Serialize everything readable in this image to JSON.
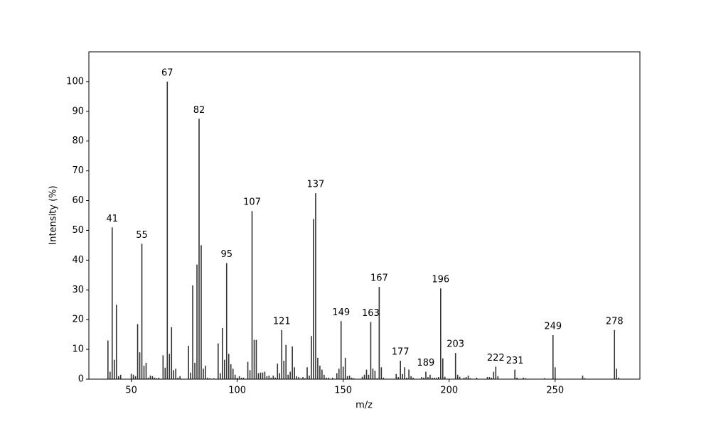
{
  "chart_data": {
    "type": "bar",
    "x_label": "m/z",
    "y_label": "Intensity (%)",
    "x": [
      39,
      40,
      41,
      42,
      43,
      44,
      45,
      50,
      51,
      52,
      53,
      54,
      55,
      56,
      57,
      58,
      59,
      60,
      61,
      62,
      63,
      65,
      66,
      67,
      68,
      69,
      70,
      71,
      72,
      73,
      77,
      78,
      79,
      80,
      81,
      82,
      83,
      84,
      85,
      86,
      87,
      89,
      91,
      92,
      93,
      94,
      95,
      96,
      97,
      98,
      99,
      100,
      101,
      102,
      103,
      105,
      106,
      107,
      108,
      109,
      110,
      111,
      112,
      113,
      114,
      115,
      116,
      117,
      118,
      119,
      120,
      121,
      122,
      123,
      124,
      125,
      126,
      127,
      128,
      129,
      130,
      131,
      132,
      133,
      134,
      135,
      136,
      137,
      138,
      139,
      140,
      141,
      142,
      143,
      145,
      147,
      148,
      149,
      150,
      151,
      152,
      153,
      154,
      155,
      159,
      160,
      161,
      162,
      163,
      164,
      165,
      166,
      167,
      168,
      169,
      175,
      176,
      177,
      178,
      179,
      180,
      181,
      182,
      183,
      187,
      188,
      189,
      190,
      191,
      192,
      193,
      194,
      195,
      196,
      197,
      198,
      203,
      204,
      205,
      207,
      208,
      209,
      210,
      213,
      218,
      219,
      220,
      221,
      222,
      223,
      231,
      232,
      235,
      236,
      245,
      249,
      250,
      263,
      264,
      278,
      279,
      280
    ],
    "values": [
      13,
      2.5,
      51,
      6.5,
      25,
      1,
      1.5,
      1.8,
      1.5,
      1,
      18.5,
      9,
      45.5,
      4.5,
      5.5,
      0.5,
      1.2,
      1,
      0.5,
      0.3,
      0.5,
      8,
      3.8,
      100,
      8.5,
      17.5,
      3,
      3.5,
      0.5,
      1,
      11.2,
      2.2,
      31.5,
      5.5,
      38.5,
      87.5,
      45,
      3.5,
      4.5,
      0.5,
      0.3,
      0.3,
      12,
      2,
      17.2,
      6.5,
      39,
      8.5,
      5,
      3.5,
      1.5,
      0.5,
      1,
      0.5,
      0.5,
      5.8,
      3,
      56.5,
      13.2,
      13.2,
      2,
      2.2,
      2.2,
      2.5,
      1,
      1.2,
      0.5,
      1.2,
      0.5,
      5.2,
      2,
      16.5,
      6.2,
      11.5,
      1.5,
      2.5,
      11,
      4,
      1,
      0.7,
      0.3,
      0.7,
      0.3,
      4,
      1.2,
      14.5,
      53.8,
      62.5,
      7.2,
      4.5,
      3.2,
      1.5,
      0.5,
      0.5,
      0.5,
      2,
      3.5,
      19.5,
      4.2,
      7.2,
      1,
      1.2,
      0.5,
      0.3,
      0.8,
      1.5,
      3.2,
      1.5,
      19.2,
      3.5,
      2.8,
      0.3,
      31,
      4,
      0.5,
      1.7,
      0.7,
      6.2,
      1.7,
      4,
      0.5,
      3.2,
      1,
      0.5,
      0.7,
      0.5,
      2.5,
      0.7,
      1.5,
      0.5,
      0.5,
      0.5,
      0.7,
      30.5,
      7,
      0.8,
      8.8,
      1.5,
      0.8,
      0.5,
      0.7,
      1.2,
      0.3,
      0.5,
      0.7,
      0.7,
      0.5,
      2.5,
      4.2,
      1,
      3.2,
      0.5,
      0.5,
      0.3,
      0.3,
      14.8,
      4,
      1.2,
      0.3,
      16.5,
      3.5,
      0.5
    ],
    "color": "#333333",
    "annotated_peaks": [
      41,
      55,
      67,
      82,
      95,
      107,
      121,
      137,
      149,
      163,
      167,
      177,
      189,
      196,
      203,
      222,
      231,
      249,
      278
    ],
    "xlim": [
      30,
      290
    ],
    "ylim": [
      0,
      110
    ],
    "xticks": [
      50,
      100,
      150,
      200,
      250
    ],
    "yticks": [
      0,
      10,
      20,
      30,
      40,
      50,
      60,
      70,
      80,
      90,
      100
    ],
    "grid": false
  }
}
